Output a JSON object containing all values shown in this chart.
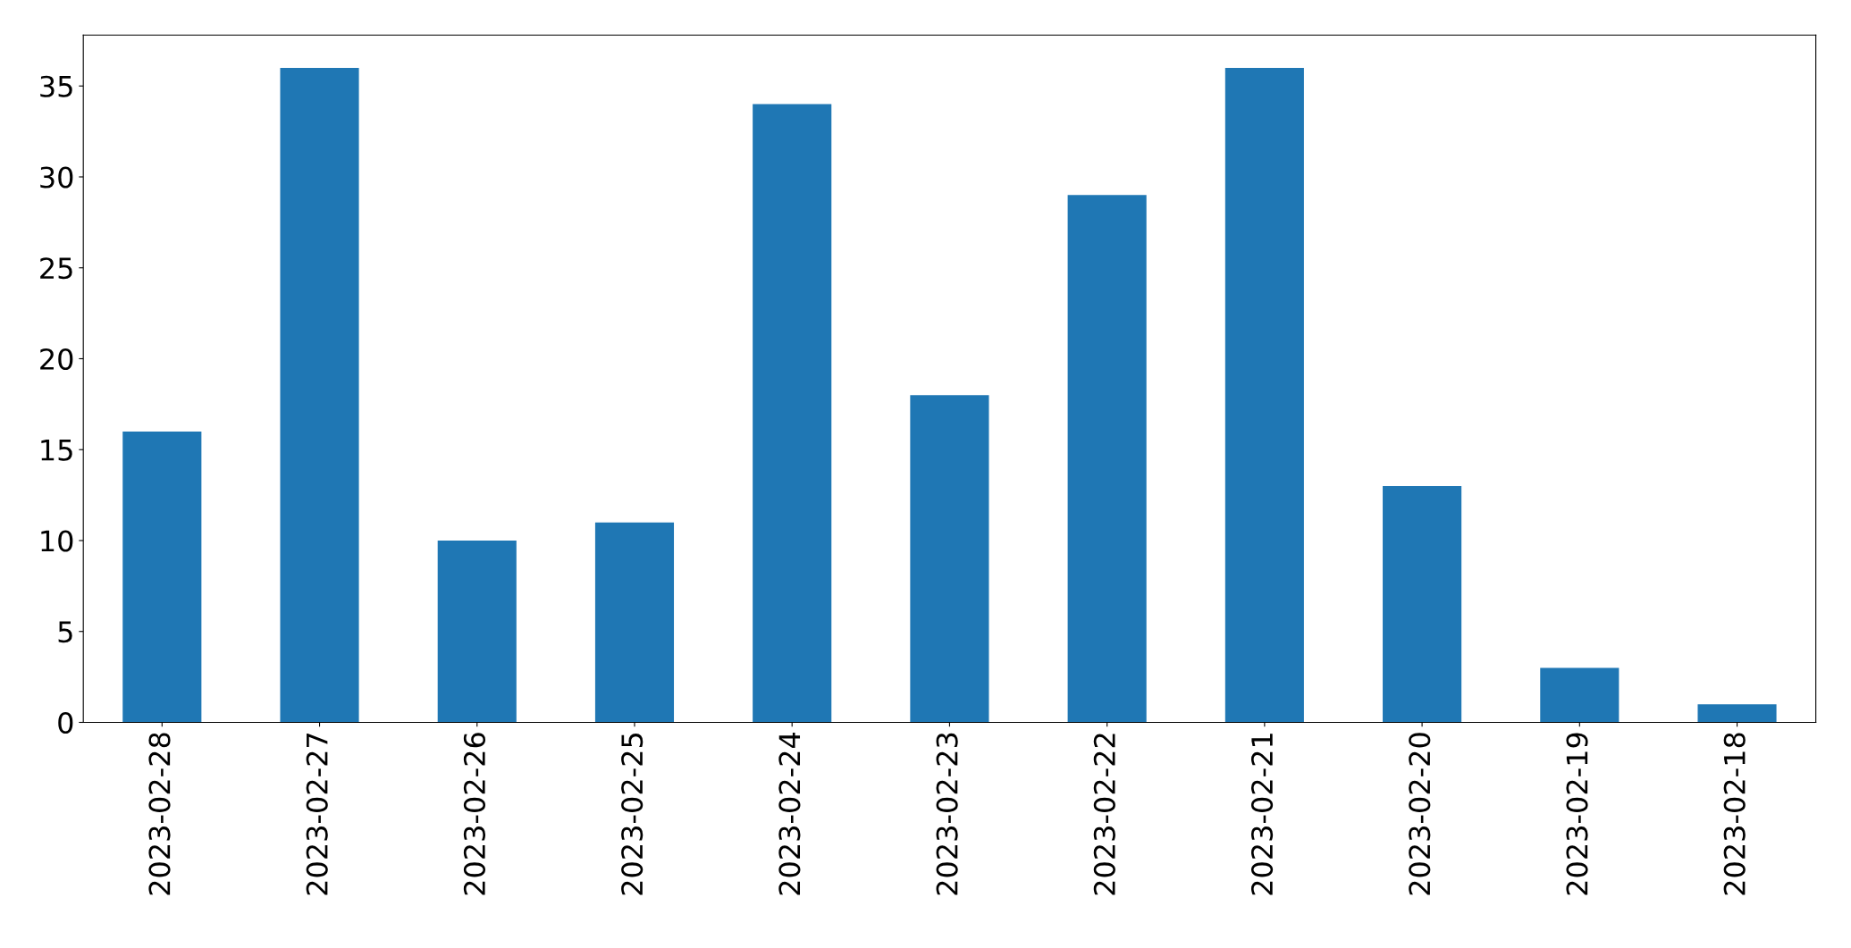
{
  "chart_data": {
    "type": "bar",
    "categories": [
      "2023-02-28",
      "2023-02-27",
      "2023-02-26",
      "2023-02-25",
      "2023-02-24",
      "2023-02-23",
      "2023-02-22",
      "2023-02-21",
      "2023-02-20",
      "2023-02-19",
      "2023-02-18"
    ],
    "values": [
      16,
      36,
      10,
      11,
      34,
      18,
      29,
      36,
      13,
      3,
      1
    ],
    "color": "#1f77b4",
    "ylim": [
      0,
      37.8
    ],
    "yticks": [
      0,
      5,
      10,
      15,
      20,
      25,
      30,
      35
    ],
    "grid": false,
    "legend": false
  }
}
